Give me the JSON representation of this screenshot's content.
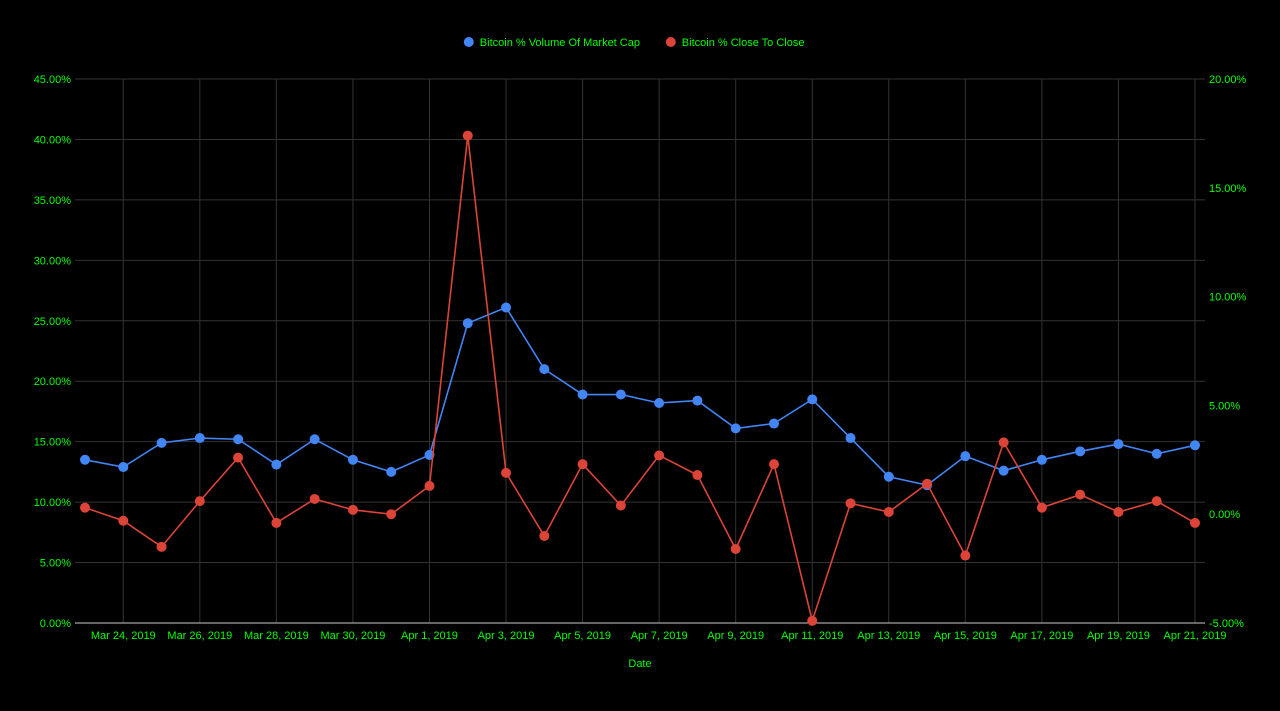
{
  "colors": {
    "background": "#000000",
    "grid": "#333333",
    "axis_text": "#00ff00",
    "series_1": "#4285f4",
    "series_2": "#db4437"
  },
  "chart_data": {
    "type": "line",
    "title": "",
    "xlabel": "Date",
    "legend_position": "top",
    "grid": true,
    "x": [
      "Mar 23, 2019",
      "Mar 24, 2019",
      "Mar 25, 2019",
      "Mar 26, 2019",
      "Mar 27, 2019",
      "Mar 28, 2019",
      "Mar 29, 2019",
      "Mar 30, 2019",
      "Mar 31, 2019",
      "Apr 1, 2019",
      "Apr 2, 2019",
      "Apr 3, 2019",
      "Apr 4, 2019",
      "Apr 5, 2019",
      "Apr 6, 2019",
      "Apr 7, 2019",
      "Apr 8, 2019",
      "Apr 9, 2019",
      "Apr 10, 2019",
      "Apr 11, 2019",
      "Apr 12, 2019",
      "Apr 13, 2019",
      "Apr 14, 2019",
      "Apr 15, 2019",
      "Apr 16, 2019",
      "Apr 17, 2019",
      "Apr 18, 2019",
      "Apr 19, 2019",
      "Apr 20, 2019",
      "Apr 21, 2019"
    ],
    "x_tick_labels": [
      "Mar 24, 2019",
      "Mar 26, 2019",
      "Mar 28, 2019",
      "Mar 30, 2019",
      "Apr 1, 2019",
      "Apr 3, 2019",
      "Apr 5, 2019",
      "Apr 7, 2019",
      "Apr 9, 2019",
      "Apr 11, 2019",
      "Apr 13, 2019",
      "Apr 15, 2019",
      "Apr 17, 2019",
      "Apr 19, 2019",
      "Apr 21, 2019"
    ],
    "y_left": {
      "range": [
        0,
        45
      ],
      "ticks": [
        0,
        5,
        10,
        15,
        20,
        25,
        30,
        35,
        40,
        45
      ],
      "tick_labels": [
        "0.00%",
        "5.00%",
        "10.00%",
        "15.00%",
        "20.00%",
        "25.00%",
        "30.00%",
        "35.00%",
        "40.00%",
        "45.00%"
      ]
    },
    "y_right": {
      "range": [
        -5,
        20
      ],
      "ticks": [
        -5,
        0,
        5,
        10,
        15,
        20
      ],
      "tick_labels": [
        "-5.00%",
        "0.00%",
        "5.00%",
        "10.00%",
        "15.00%",
        "20.00%"
      ]
    },
    "series": [
      {
        "name": "Bitcoin % Volume Of Market Cap",
        "axis": "left",
        "color": "#4285f4",
        "values": [
          13.5,
          12.9,
          14.9,
          15.3,
          15.2,
          13.1,
          15.2,
          13.5,
          12.5,
          13.9,
          24.8,
          26.1,
          21.0,
          18.9,
          18.9,
          18.2,
          18.4,
          16.1,
          16.5,
          18.5,
          15.3,
          12.1,
          11.4,
          13.8,
          12.6,
          13.5,
          14.2,
          14.8,
          14.0,
          14.7
        ]
      },
      {
        "name": "Bitcoin % Close To Close",
        "axis": "right",
        "color": "#db4437",
        "values": [
          0.3,
          -0.3,
          -1.5,
          0.6,
          2.6,
          -0.4,
          0.7,
          0.2,
          0.0,
          1.3,
          17.4,
          1.9,
          -1.0,
          2.3,
          0.4,
          2.7,
          1.8,
          -1.6,
          2.3,
          -4.9,
          0.5,
          0.1,
          1.4,
          -1.9,
          3.3,
          0.3,
          0.9,
          0.1,
          0.6,
          -0.4
        ]
      }
    ]
  }
}
